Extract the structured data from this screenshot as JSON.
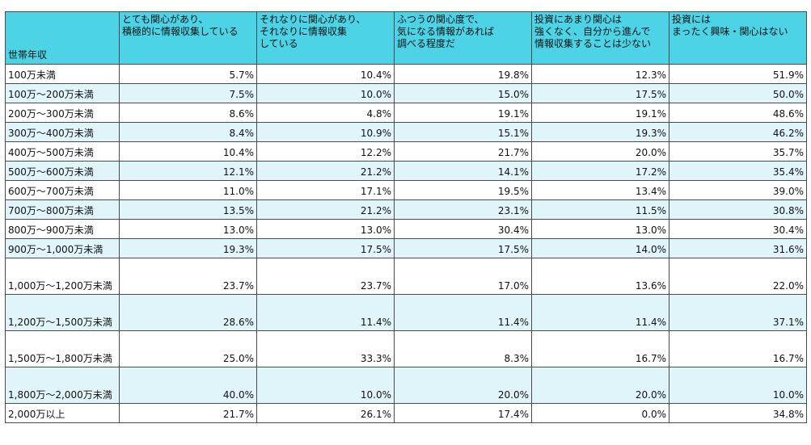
{
  "table": {
    "headers": [
      {
        "lines": [
          "世帯年収"
        ]
      },
      {
        "lines": [
          "とても関心があり、",
          "積極的に情報収集している"
        ]
      },
      {
        "lines": [
          "それなりに関心があり、",
          "それなりに情報収集",
          "している"
        ]
      },
      {
        "lines": [
          "ふつうの関心度で、",
          "気になる情報があれば",
          "調べる程度だ"
        ]
      },
      {
        "lines": [
          "投資にあまり関心は",
          "強くなく、自分から進んで",
          "情報収集することは少ない"
        ]
      },
      {
        "lines": [
          "投資には",
          "まったく興味・関心はない"
        ]
      }
    ],
    "rows": [
      {
        "cells": [
          "100万未満",
          "5.7%",
          "10.4%",
          "19.8%",
          "12.3%",
          "51.9%"
        ]
      },
      {
        "cells": [
          "100万～200万未満",
          "7.5%",
          "10.0%",
          "15.0%",
          "17.5%",
          "50.0%"
        ]
      },
      {
        "cells": [
          "200万～300万未満",
          "8.6%",
          "4.8%",
          "19.1%",
          "19.1%",
          "48.6%"
        ]
      },
      {
        "cells": [
          "300万～400万未満",
          "8.4%",
          "10.9%",
          "15.1%",
          "19.3%",
          "46.2%"
        ]
      },
      {
        "cells": [
          "400万～500万未満",
          "10.4%",
          "12.2%",
          "21.7%",
          "20.0%",
          "35.7%"
        ]
      },
      {
        "cells": [
          "500万～600万未満",
          "12.1%",
          "21.2%",
          "14.1%",
          "17.2%",
          "35.4%"
        ]
      },
      {
        "cells": [
          "600万～700万未満",
          "11.0%",
          "17.1%",
          "19.5%",
          "13.4%",
          "39.0%"
        ]
      },
      {
        "cells": [
          "700万～800万未満",
          "13.5%",
          "21.2%",
          "23.1%",
          "11.5%",
          "30.8%"
        ]
      },
      {
        "cells": [
          "800万～900万未満",
          "13.0%",
          "13.0%",
          "30.4%",
          "13.0%",
          "30.4%"
        ]
      },
      {
        "cells": [
          "900万～1,000万未満",
          "19.3%",
          "17.5%",
          "17.5%",
          "14.0%",
          "31.6%"
        ]
      },
      {
        "cells": [
          "1,000万～1,200万未満",
          "23.7%",
          "23.7%",
          "17.0%",
          "13.6%",
          "22.0%"
        ]
      },
      {
        "cells": [
          "1,200万～1,500万未満",
          "28.6%",
          "11.4%",
          "11.4%",
          "11.4%",
          "37.1%"
        ]
      },
      {
        "cells": [
          "1,500万～1,800万未満",
          "25.0%",
          "33.3%",
          "8.3%",
          "16.7%",
          "16.7%"
        ]
      },
      {
        "cells": [
          "1,800万～2,000万未満",
          "40.0%",
          "10.0%",
          "20.0%",
          "20.0%",
          "10.0%"
        ]
      },
      {
        "cells": [
          "2,000万以上",
          "21.7%",
          "26.1%",
          "17.4%",
          "0.0%",
          "34.8%"
        ]
      }
    ]
  }
}
